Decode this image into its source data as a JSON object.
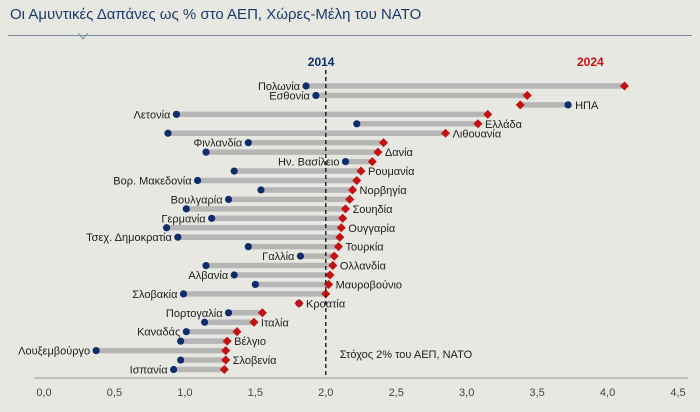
{
  "title": "Οι Αμυντικές Δαπάνες ως % στο ΑΕΠ, Χώρες-Μέλη του ΝΑΤΟ",
  "colors": {
    "year_2014": "#0d2d6b",
    "year_2024": "#c41212",
    "connector": "#b6b6b6",
    "background": "#e8e8e3"
  },
  "chart_data": {
    "type": "dumbbell",
    "title": "Οι Αμυντικές Δαπάνες ως % στο ΑΕΠ, Χώρες-Μέλη του ΝΑΤΟ",
    "series": [
      {
        "name": "2014",
        "marker": "circle",
        "color": "#0d2d6b"
      },
      {
        "name": "2024",
        "marker": "diamond",
        "color": "#c41212"
      }
    ],
    "xlim": [
      0.0,
      4.5
    ],
    "x_ticks": [
      "0,0",
      "0,5",
      "1,0",
      "1,5",
      "2,0",
      "2,5",
      "3,0",
      "3,5",
      "4,0",
      "4,5"
    ],
    "x_tick_values": [
      0.0,
      0.5,
      1.0,
      1.5,
      2.0,
      2.5,
      3.0,
      3.5,
      4.0,
      4.5
    ],
    "reference_line": {
      "value": 2.0,
      "label": "Στόχος 2% του ΑΕΠ, ΝΑΤΟ"
    },
    "grid": false,
    "countries": [
      {
        "name": "Πολωνία",
        "v2014": 1.86,
        "v2024": 4.12,
        "label_side": "left"
      },
      {
        "name": "Εσθονία",
        "v2014": 1.93,
        "v2024": 3.43,
        "label_side": "left"
      },
      {
        "name": "ΗΠΑ",
        "v2014": 3.72,
        "v2024": 3.38,
        "label_side": "right"
      },
      {
        "name": "Λετονία",
        "v2014": 0.94,
        "v2024": 3.15,
        "label_side": "left"
      },
      {
        "name": "Ελλάδα",
        "v2014": 2.22,
        "v2024": 3.08,
        "label_side": "right"
      },
      {
        "name": "Λιθουανία",
        "v2014": 0.88,
        "v2024": 2.85,
        "label_side": "right"
      },
      {
        "name": "Φινλανδία",
        "v2014": 1.45,
        "v2024": 2.41,
        "label_side": "left"
      },
      {
        "name": "Δανία",
        "v2014": 1.15,
        "v2024": 2.37,
        "label_side": "right"
      },
      {
        "name": "Ην. Βασίλειο",
        "v2014": 2.14,
        "v2024": 2.33,
        "label_side": "left"
      },
      {
        "name": "Ρουμανία",
        "v2014": 1.35,
        "v2024": 2.25,
        "label_side": "right"
      },
      {
        "name": "Βορ. Μακεδονία",
        "v2014": 1.09,
        "v2024": 2.22,
        "label_side": "left"
      },
      {
        "name": "Νορβηγία",
        "v2014": 1.54,
        "v2024": 2.19,
        "label_side": "right"
      },
      {
        "name": "Βουλγαρία",
        "v2014": 1.31,
        "v2024": 2.17,
        "label_side": "left"
      },
      {
        "name": "Σουηδία",
        "v2014": 1.01,
        "v2024": 2.14,
        "label_side": "right"
      },
      {
        "name": "Γερμανία",
        "v2014": 1.19,
        "v2024": 2.12,
        "label_side": "left"
      },
      {
        "name": "Ουγγαρία",
        "v2014": 0.87,
        "v2024": 2.11,
        "label_side": "right"
      },
      {
        "name": "Τσεχ. Δημοκρατία",
        "v2014": 0.95,
        "v2024": 2.1,
        "label_side": "left"
      },
      {
        "name": "Τουρκία",
        "v2014": 1.45,
        "v2024": 2.09,
        "label_side": "right"
      },
      {
        "name": "Γαλλία",
        "v2014": 1.82,
        "v2024": 2.06,
        "label_side": "left"
      },
      {
        "name": "Ολλανδία",
        "v2014": 1.15,
        "v2024": 2.05,
        "label_side": "right"
      },
      {
        "name": "Αλβανία",
        "v2014": 1.35,
        "v2024": 2.03,
        "label_side": "left"
      },
      {
        "name": "Μαυροβούνιο",
        "v2014": 1.5,
        "v2024": 2.02,
        "label_side": "right"
      },
      {
        "name": "Σλοβακία",
        "v2014": 0.99,
        "v2024": 2.0,
        "label_side": "left"
      },
      {
        "name": "Κροατία",
        "v2014": 1.81,
        "v2024": 1.81,
        "label_side": "right"
      },
      {
        "name": "Πορτογαλία",
        "v2014": 1.31,
        "v2024": 1.55,
        "label_side": "left"
      },
      {
        "name": "Ιταλία",
        "v2014": 1.14,
        "v2024": 1.49,
        "label_side": "right"
      },
      {
        "name": "Καναδάς",
        "v2014": 1.01,
        "v2024": 1.37,
        "label_side": "left"
      },
      {
        "name": "Βέλγιο",
        "v2014": 0.97,
        "v2024": 1.3,
        "label_side": "right"
      },
      {
        "name": "Λουξεμβούργο",
        "v2014": 0.37,
        "v2024": 1.29,
        "label_side": "left"
      },
      {
        "name": "Σλοβενία",
        "v2014": 0.97,
        "v2024": 1.29,
        "label_side": "right"
      },
      {
        "name": "Ισπανία",
        "v2014": 0.92,
        "v2024": 1.28,
        "label_side": "left"
      }
    ]
  }
}
